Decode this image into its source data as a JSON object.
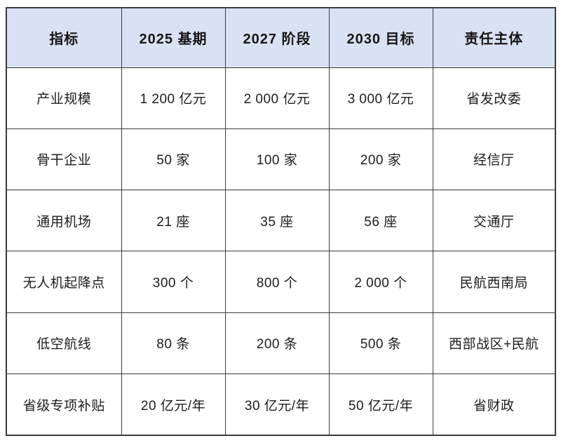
{
  "table": {
    "headers": [
      "指标",
      "2025 基期",
      "2027 阶段",
      "2030 目标",
      "责任主体"
    ],
    "rows": [
      [
        "产业规模",
        "1 200 亿元",
        "2 000 亿元",
        "3 000 亿元",
        "省发改委"
      ],
      [
        "骨干企业",
        "50 家",
        "100 家",
        "200 家",
        "经信厅"
      ],
      [
        "通用机场",
        "21 座",
        "35 座",
        "56 座",
        "交通厅"
      ],
      [
        "无人机起降点",
        "300 个",
        "800 个",
        "2 000 个",
        "民航西南局"
      ],
      [
        "低空航线",
        "80 条",
        "200 条",
        "500 条",
        "西部战区+民航"
      ],
      [
        "省级专项补贴",
        "20 亿元/年",
        "30 亿元/年",
        "50 亿元/年",
        "省财政"
      ]
    ]
  },
  "colors": {
    "header_bg": "#d9e2f3",
    "border": "#3b3b3b",
    "header_text": "#161616",
    "body_text": "#1c1c1c",
    "page_bg": "#ffffff"
  }
}
